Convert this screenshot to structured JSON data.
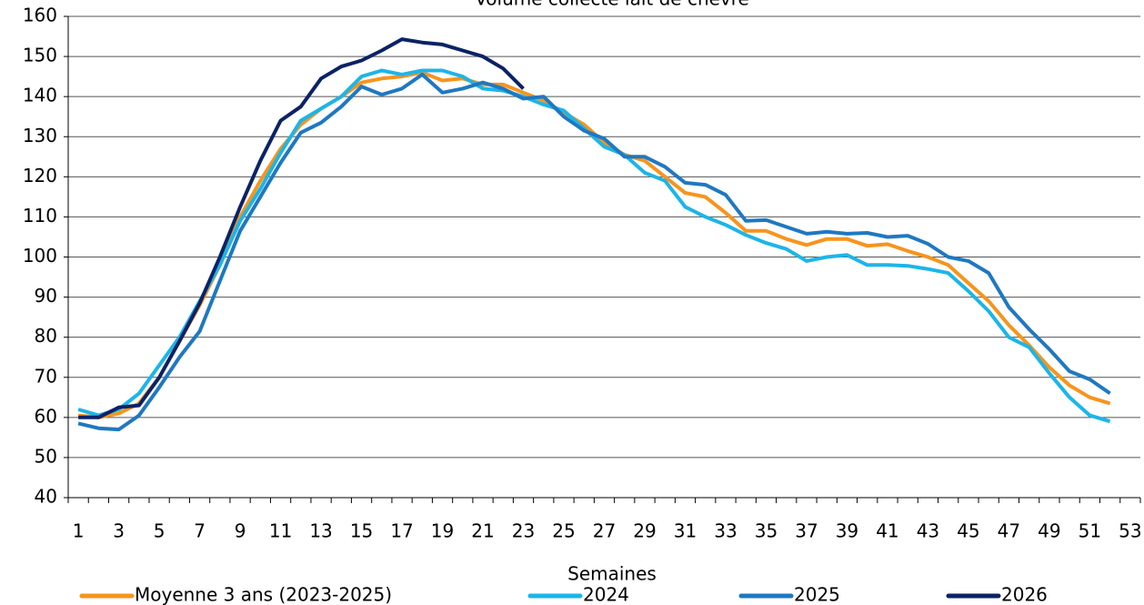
{
  "chart_data": {
    "type": "line",
    "title": "Volume collecté lait de chèvre",
    "x_label": "Semaines",
    "categories": [
      1,
      null,
      3,
      null,
      5,
      null,
      7,
      null,
      9,
      null,
      11,
      null,
      13,
      null,
      15,
      null,
      17,
      null,
      19,
      null,
      21,
      null,
      23,
      null,
      25,
      null,
      27,
      null,
      29,
      null,
      31,
      null,
      33,
      null,
      35,
      null,
      37,
      null,
      39,
      null,
      41,
      null,
      43,
      null,
      45,
      null,
      47,
      null,
      49,
      null,
      51,
      null,
      53
    ],
    "ylim": [
      40,
      160
    ],
    "yticks": [
      40,
      50,
      60,
      70,
      80,
      90,
      100,
      110,
      120,
      130,
      140,
      150,
      160
    ],
    "grid": true,
    "series": [
      {
        "name": "Moyenne 3 ans (2023-2025)",
        "color": "#f7941d",
        "values": [
          60.5,
          60,
          61,
          63.5,
          70,
          79,
          88,
          98,
          110,
          119,
          127,
          133,
          137,
          140,
          143.5,
          144.5,
          145,
          146,
          144,
          144.5,
          143,
          143,
          141,
          139,
          136,
          133,
          128.5,
          125.5,
          124,
          120,
          116,
          115,
          111,
          106.5,
          106.5,
          104.5,
          103,
          104.5,
          104.5,
          102.8,
          103.2,
          101.5,
          100,
          98,
          93.5,
          89,
          83,
          78,
          72.5,
          68,
          65,
          63.5,
          null
        ]
      },
      {
        "name": "2024",
        "color": "#1cb5e8",
        "values": [
          62,
          60.5,
          62,
          66,
          73,
          80,
          89,
          98,
          109,
          117,
          126,
          134,
          137,
          140,
          145,
          146.5,
          145.5,
          146.5,
          146.5,
          145,
          142,
          141.5,
          140,
          138,
          136.5,
          132,
          127.5,
          125.5,
          121,
          119,
          112.5,
          110,
          108,
          105.5,
          103.5,
          102,
          99,
          100,
          100.5,
          98,
          98,
          97.8,
          97,
          96,
          91.5,
          86.5,
          80,
          77.5,
          71,
          65,
          60.5,
          59,
          null
        ]
      },
      {
        "name": "2025",
        "color": "#1f78c1",
        "values": [
          58.5,
          57.3,
          57,
          60.5,
          67.5,
          75,
          81.5,
          94,
          106.5,
          115,
          123.5,
          131,
          133.5,
          137.5,
          142.5,
          140.5,
          142,
          145.5,
          141,
          142,
          143.5,
          142,
          139.5,
          140,
          135,
          131.5,
          129.5,
          125,
          125,
          122.5,
          118.5,
          118,
          115.5,
          109,
          109.2,
          107.5,
          105.8,
          106.3,
          105.8,
          106,
          105,
          105.3,
          103.3,
          100,
          99,
          96,
          87.5,
          82,
          77,
          71.5,
          69.5,
          66,
          null
        ]
      },
      {
        "name": "2026",
        "color": "#0b2265",
        "values": [
          60,
          60,
          62.5,
          63,
          70,
          79,
          88.5,
          100,
          112.5,
          124,
          134,
          137.5,
          144.5,
          147.5,
          149,
          151.5,
          154.3,
          153.5,
          153,
          151.5,
          150,
          147,
          142,
          null,
          null,
          null,
          null,
          null,
          null,
          null,
          null,
          null,
          null,
          null,
          null,
          null,
          null,
          null,
          null,
          null,
          null,
          null,
          null,
          null,
          null,
          null,
          null,
          null,
          null,
          null,
          null,
          null,
          null
        ]
      }
    ]
  }
}
